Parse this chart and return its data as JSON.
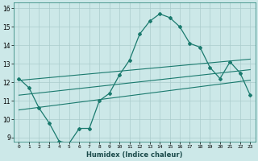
{
  "xlabel": "Humidex (Indice chaleur)",
  "x": [
    0,
    1,
    2,
    3,
    4,
    5,
    6,
    7,
    8,
    9,
    10,
    11,
    12,
    13,
    14,
    15,
    16,
    17,
    18,
    19,
    20,
    21,
    22,
    23
  ],
  "main_y": [
    12.2,
    11.7,
    10.6,
    9.8,
    8.8,
    8.7,
    9.5,
    9.5,
    11.0,
    11.4,
    12.4,
    13.2,
    14.6,
    15.3,
    15.7,
    15.5,
    15.0,
    14.1,
    13.9,
    12.8,
    12.2,
    13.1,
    12.5,
    11.3
  ],
  "reg_upper_y": [
    12.1,
    12.15,
    12.2,
    12.25,
    12.3,
    12.35,
    12.4,
    12.45,
    12.5,
    12.55,
    12.6,
    12.65,
    12.7,
    12.75,
    12.8,
    12.85,
    12.9,
    12.95,
    13.0,
    13.05,
    13.1,
    13.15,
    13.2,
    13.25
  ],
  "reg_mid_y": [
    11.3,
    11.36,
    11.42,
    11.48,
    11.54,
    11.6,
    11.66,
    11.72,
    11.78,
    11.84,
    11.9,
    11.96,
    12.02,
    12.08,
    12.14,
    12.2,
    12.26,
    12.32,
    12.38,
    12.44,
    12.5,
    12.56,
    12.62,
    12.68
  ],
  "reg_lower_y": [
    10.5,
    10.57,
    10.64,
    10.71,
    10.78,
    10.85,
    10.92,
    10.99,
    11.06,
    11.13,
    11.2,
    11.27,
    11.34,
    11.41,
    11.48,
    11.55,
    11.62,
    11.69,
    11.76,
    11.83,
    11.9,
    11.97,
    12.04,
    12.11
  ],
  "line_color": "#1a7a6e",
  "bg_color": "#cce8e8",
  "grid_color": "#aacccc",
  "yticks": [
    9,
    10,
    11,
    12,
    13,
    14,
    15,
    16
  ],
  "ylim": [
    8.8,
    16.3
  ],
  "xlim": [
    -0.5,
    23.5
  ]
}
